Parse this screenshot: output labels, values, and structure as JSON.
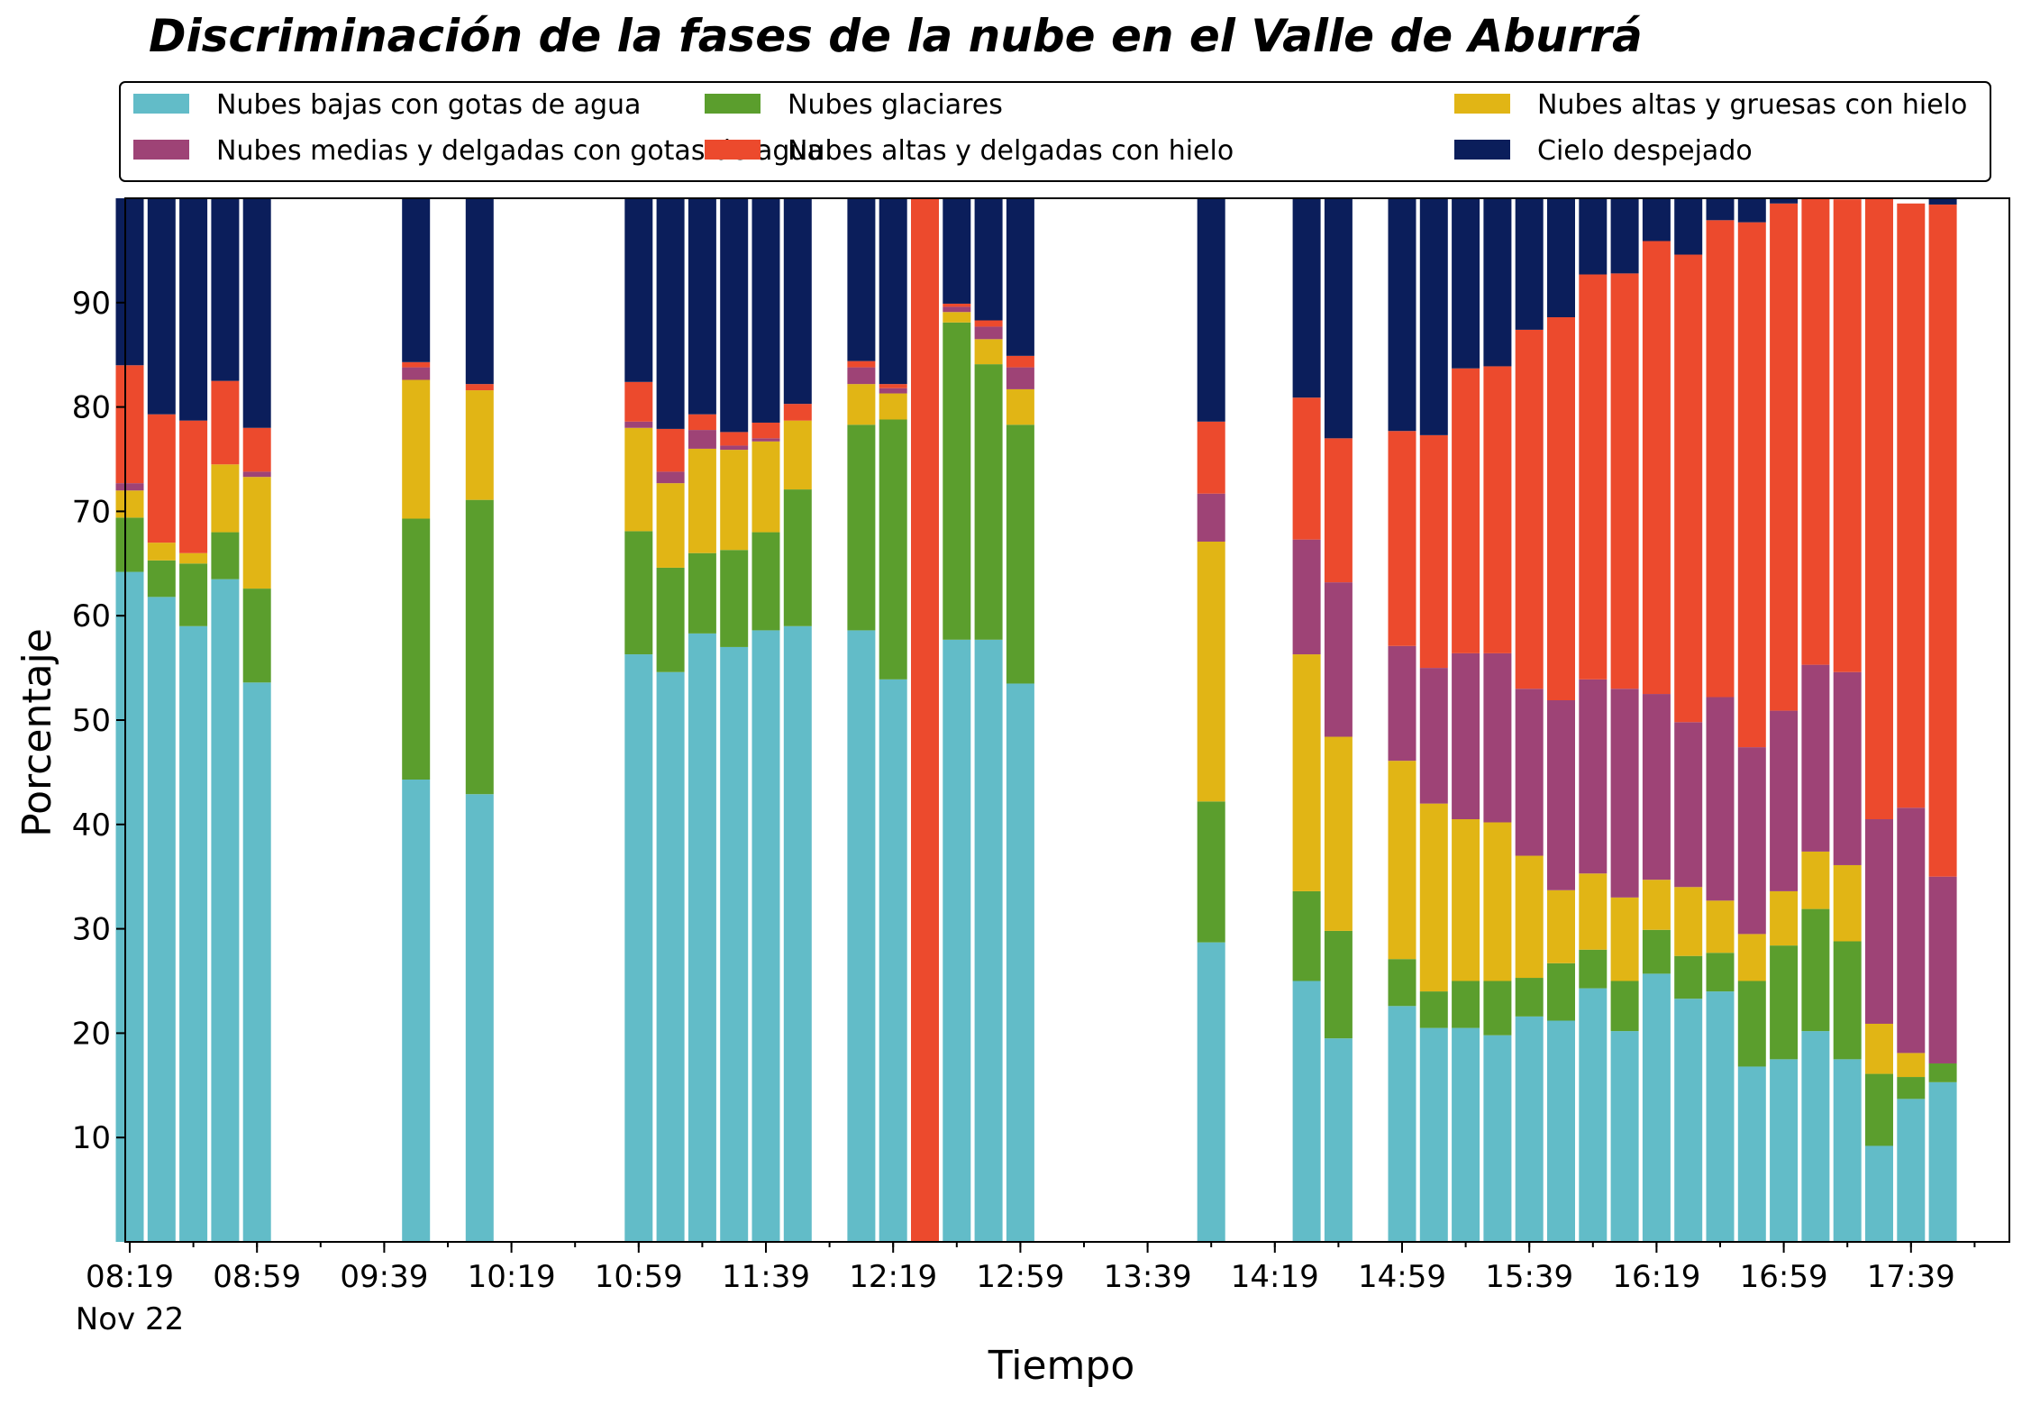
{
  "chart_data": {
    "type": "bar",
    "stacked": true,
    "title": "Discriminación de la fases de la nube en el Valle de Aburrá",
    "xlabel": "Tiempo",
    "ylabel": "Porcentaje",
    "ylim": [
      0,
      100
    ],
    "yticks": [
      10,
      20,
      30,
      40,
      50,
      60,
      70,
      80,
      90
    ],
    "x_start": "08:19",
    "x_end": "17:59",
    "x_step_minutes": 10,
    "x_ticks": [
      "08:19",
      "08:59",
      "09:39",
      "10:19",
      "10:59",
      "11:39",
      "12:19",
      "12:59",
      "13:39",
      "14:19",
      "14:59",
      "15:39",
      "16:19",
      "16:59",
      "17:39"
    ],
    "x_date_label": "Nov 22",
    "grid": false,
    "legend_position": "top",
    "categories": [
      "08:19",
      "08:29",
      "08:39",
      "08:49",
      "08:59",
      "09:49",
      "10:09",
      "10:59",
      "11:09",
      "11:19",
      "11:29",
      "11:39",
      "11:49",
      "12:09",
      "12:19",
      "12:29",
      "12:39",
      "12:49",
      "12:59",
      "13:59",
      "14:29",
      "14:39",
      "14:59",
      "15:09",
      "15:19",
      "15:29",
      "15:39",
      "15:49",
      "15:59",
      "16:09",
      "16:19",
      "16:29",
      "16:39",
      "16:49",
      "16:59",
      "17:09",
      "17:19",
      "17:29",
      "17:39",
      "17:49"
    ],
    "series": [
      {
        "name": "Nubes bajas con gotas de agua",
        "color": "#62bcc8",
        "values": [
          64.2,
          61.8,
          59.0,
          63.5,
          53.6,
          44.3,
          42.9,
          56.3,
          54.6,
          58.3,
          57.0,
          58.6,
          59.0,
          58.6,
          53.9,
          0,
          57.7,
          57.7,
          53.5,
          28.7,
          25.0,
          19.5,
          22.6,
          20.5,
          20.5,
          19.8,
          21.6,
          21.2,
          24.3,
          20.2,
          25.7,
          23.3,
          24.0,
          16.8,
          17.5,
          20.2,
          17.5,
          9.2,
          13.7,
          15.3
        ]
      },
      {
        "name": "Nubes glaciares",
        "color": "#5b9e2d",
        "values": [
          5.2,
          3.5,
          6.0,
          4.5,
          9.0,
          25.0,
          28.2,
          11.8,
          10.0,
          7.7,
          9.3,
          9.4,
          13.1,
          19.7,
          24.9,
          0,
          30.4,
          26.4,
          24.8,
          13.5,
          8.6,
          10.3,
          4.5,
          3.5,
          4.5,
          5.2,
          3.7,
          5.5,
          3.7,
          4.8,
          4.2,
          4.1,
          3.7,
          8.2,
          10.9,
          11.7,
          11.3,
          6.9,
          2.1,
          1.8
        ]
      },
      {
        "name": "Nubes altas y gruesas con hielo",
        "color": "#e1b515",
        "values": [
          2.6,
          1.7,
          1.0,
          6.5,
          10.7,
          13.3,
          10.5,
          9.9,
          8.1,
          10.0,
          9.6,
          8.7,
          6.6,
          3.9,
          2.5,
          0,
          1.0,
          2.4,
          3.4,
          24.9,
          22.7,
          18.6,
          19.0,
          18.0,
          15.5,
          15.2,
          11.7,
          7.0,
          7.3,
          8.0,
          4.8,
          6.6,
          5.0,
          4.5,
          5.2,
          5.5,
          7.3,
          4.8,
          2.3,
          0
        ]
      },
      {
        "name": "Nubes medias y delgadas con gotas de agua",
        "color": "#9e4376",
        "values": [
          0.7,
          0,
          0,
          0,
          0.5,
          1.2,
          0,
          0.6,
          1.1,
          1.8,
          0.4,
          0.3,
          0,
          1.6,
          0.5,
          0,
          0.5,
          1.2,
          2.1,
          4.6,
          11.0,
          14.8,
          11.0,
          13.0,
          15.9,
          16.2,
          16.0,
          18.2,
          18.6,
          20.0,
          17.8,
          15.8,
          19.5,
          17.9,
          17.3,
          17.9,
          18.5,
          19.6,
          23.5,
          17.9
        ]
      },
      {
        "name": "Nubes altas y delgadas con hielo",
        "color": "#ec4a2d",
        "values": [
          11.3,
          12.3,
          12.7,
          8.0,
          4.2,
          0.5,
          0.6,
          3.8,
          4.1,
          1.5,
          1.3,
          1.5,
          1.6,
          0.6,
          0.4,
          100,
          0.3,
          0.6,
          1.1,
          6.9,
          13.6,
          13.8,
          20.6,
          22.3,
          27.3,
          27.5,
          34.4,
          36.7,
          38.8,
          39.8,
          43.4,
          44.8,
          45.7,
          50.3,
          48.6,
          44.7,
          45.3,
          59.5,
          57.9,
          64.4
        ]
      },
      {
        "name": "Cielo despejado",
        "color": "#0b1e5b",
        "values": [
          16.0,
          20.7,
          21.3,
          17.5,
          22.0,
          15.7,
          17.8,
          17.6,
          22.1,
          20.7,
          22.4,
          21.5,
          19.7,
          15.6,
          17.8,
          0,
          10.1,
          11.7,
          15.1,
          21.4,
          19.1,
          23.0,
          22.3,
          22.7,
          16.3,
          16.1,
          12.6,
          11.4,
          7.3,
          7.2,
          4.1,
          5.4,
          2.1,
          2.3,
          0.5,
          0,
          0,
          0.2,
          0,
          0.6
        ]
      }
    ]
  }
}
